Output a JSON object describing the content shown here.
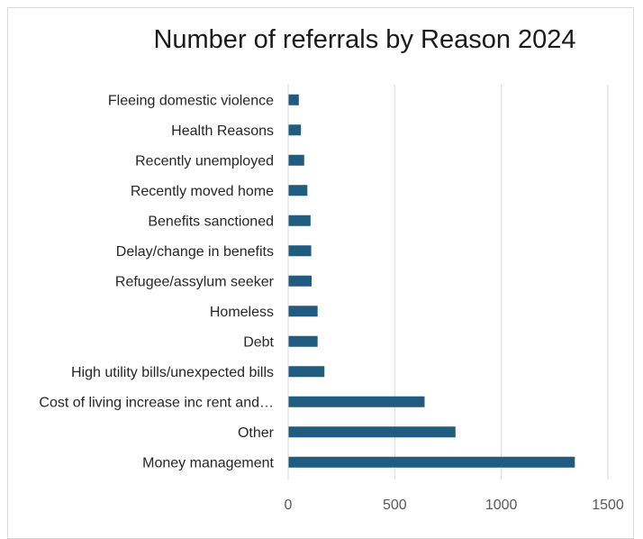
{
  "chart_data": {
    "type": "bar",
    "orientation": "horizontal",
    "title": "Number of referrals by Reason 2024",
    "xlabel": "",
    "ylabel": "",
    "categories": [
      "Fleeing domestic violence",
      "Health Reasons",
      "Recently unemployed",
      "Recently moved home",
      "Benefits sanctioned",
      "Delay/change in benefits",
      "Refugee/assylum seeker",
      "Homeless",
      "Debt",
      "High utility bills/unexpected bills",
      "Cost of living increase inc rent and…",
      "Other",
      "Money management"
    ],
    "values": [
      50,
      60,
      75,
      90,
      105,
      108,
      110,
      138,
      138,
      170,
      640,
      785,
      1345
    ],
    "xlim": [
      0,
      1500
    ],
    "ticks": [
      "0",
      "500",
      "1000",
      "1500"
    ],
    "tick_values": [
      0,
      500,
      1000,
      1500
    ],
    "grid": "vertical",
    "legend": "none",
    "bar_color": "#1f5c7f",
    "grid_color": "#d9d9d9"
  }
}
